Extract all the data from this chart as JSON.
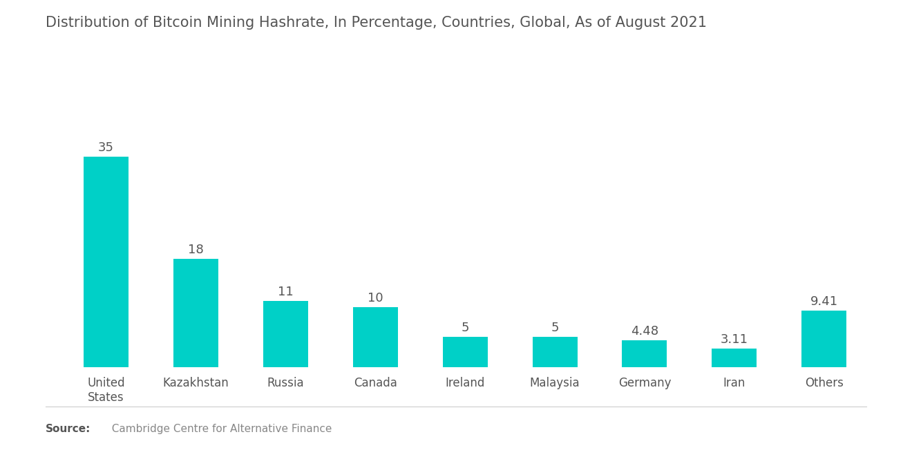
{
  "title": "Distribution of Bitcoin Mining Hashrate, In Percentage, Countries, Global, As of August 2021",
  "categories": [
    "United\nStates",
    "Kazakhstan",
    "Russia",
    "Canada",
    "Ireland",
    "Malaysia",
    "Germany",
    "Iran",
    "Others"
  ],
  "values": [
    35,
    18,
    11,
    10,
    5,
    5,
    4.48,
    3.11,
    9.41
  ],
  "labels": [
    "35",
    "18",
    "11",
    "10",
    "5",
    "5",
    "4.48",
    "3.11",
    "9.41"
  ],
  "bar_color": "#00D0C7",
  "background_color": "#ffffff",
  "source_bold": "Source:",
  "source_text": "  Cambridge Centre for Alternative Finance",
  "title_fontsize": 15,
  "label_fontsize": 13,
  "tick_fontsize": 12,
  "source_fontsize": 11,
  "ylim": [
    0,
    42
  ]
}
